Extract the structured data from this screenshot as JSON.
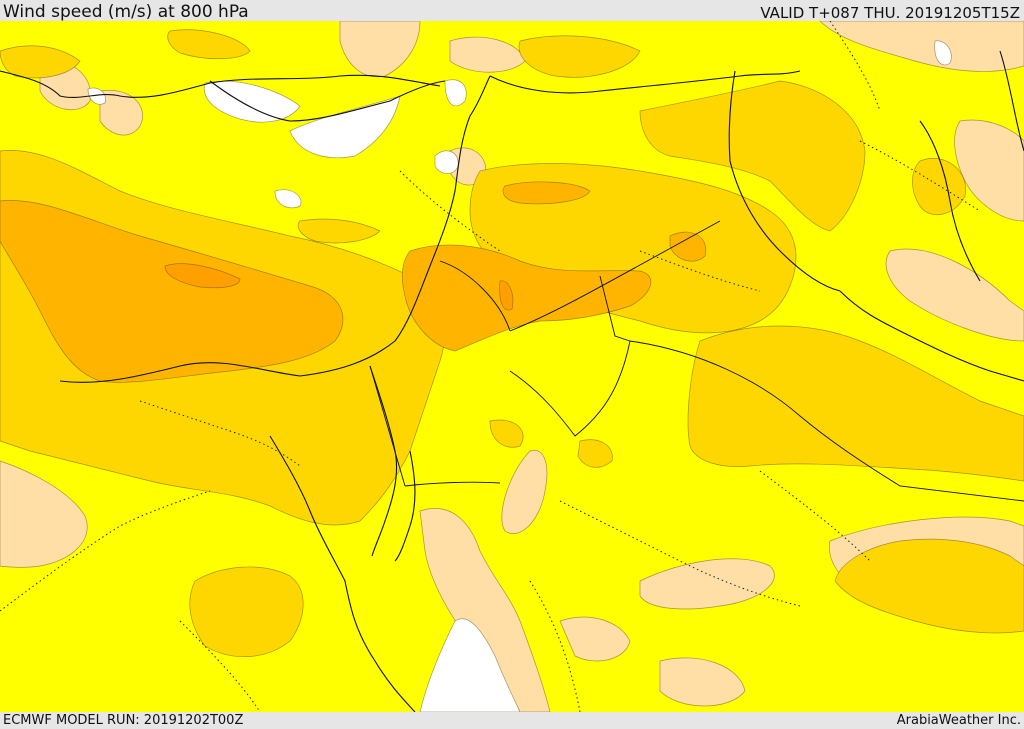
{
  "header": {
    "title": "Wind speed (m/s) at 800 hPa",
    "valid": "VALID T+087 THU. 20191205T15Z"
  },
  "footer": {
    "model_run": "ECMWF MODEL RUN: 20191202T00Z",
    "credit": "ArabiaWeather Inc."
  },
  "colors": {
    "calm_white": "#ffffff",
    "light_peach": "#ffdfa6",
    "yellow": "#ffff00",
    "gold": "#ffd700",
    "orange": "#ffb400",
    "deep_orange": "#ffa000",
    "coastline": "#111111"
  },
  "map": {
    "field": "wind speed",
    "level": "800 hPa",
    "units": "m/s"
  }
}
